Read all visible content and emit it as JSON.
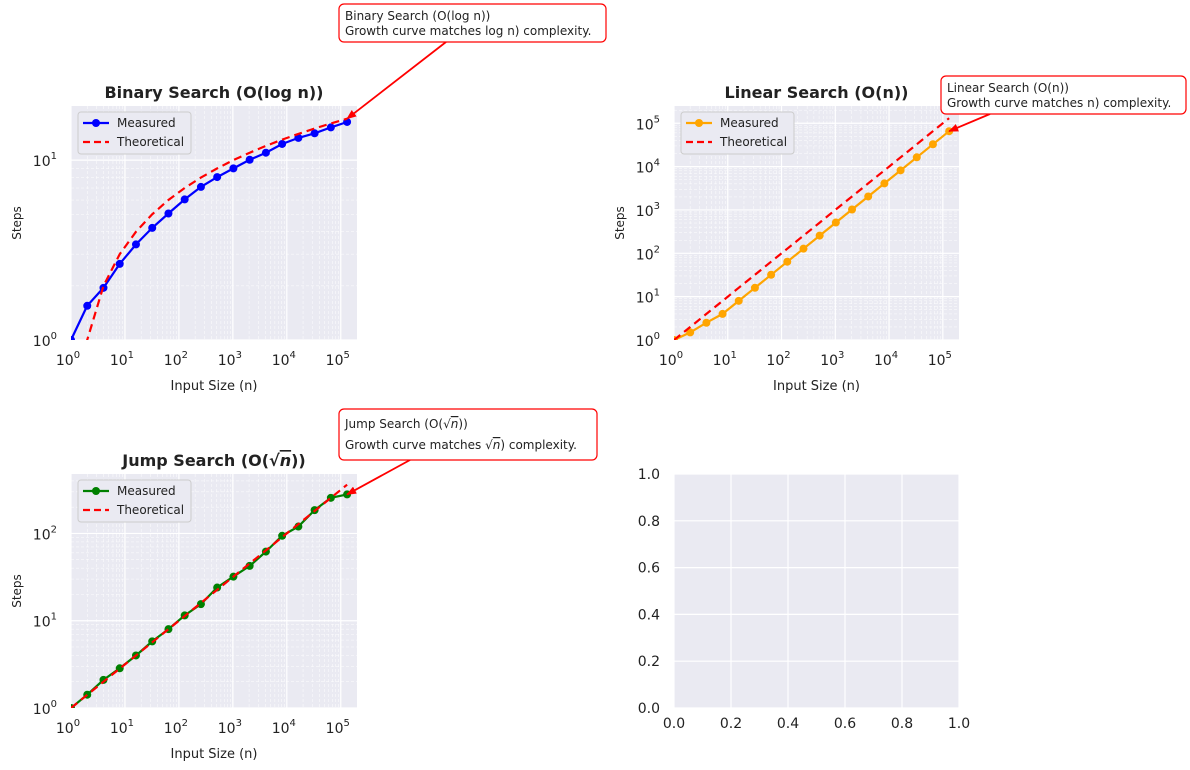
{
  "colors": {
    "theoretical": "#ff0000",
    "annotation": "#ff0000",
    "panel_bg": "#eaeaf2",
    "grid": "#ffffff"
  },
  "chart_data": [
    {
      "type": "line",
      "title": "Binary Search (O(log n))",
      "xlabel": "Input Size (n)",
      "ylabel": "Steps",
      "xscale": "log",
      "yscale": "log",
      "xlim": [
        1,
        200000
      ],
      "ylim": [
        1,
        20
      ],
      "xticks": [
        {
          "base": "10",
          "exp": "0"
        },
        {
          "base": "10",
          "exp": "1"
        },
        {
          "base": "10",
          "exp": "2"
        },
        {
          "base": "10",
          "exp": "3"
        },
        {
          "base": "10",
          "exp": "4"
        },
        {
          "base": "10",
          "exp": "5"
        }
      ],
      "yticks": [
        {
          "base": "10",
          "exp": "0"
        },
        {
          "base": "10",
          "exp": "1"
        }
      ],
      "legend_position": "upper-left",
      "grid": true,
      "series": [
        {
          "name": "Measured",
          "color": "#0000ff",
          "style": "solid-markers",
          "x": [
            1,
            2,
            4,
            8,
            16,
            32,
            64,
            128,
            256,
            512,
            1024,
            2048,
            4096,
            8192,
            16384,
            32768,
            65536,
            131072
          ],
          "y": [
            1,
            1.55,
            1.95,
            2.65,
            3.4,
            4.2,
            5.05,
            6.05,
            7.1,
            8.05,
            9,
            10.05,
            11,
            12.3,
            13.3,
            14.1,
            15.2,
            16.3
          ]
        },
        {
          "name": "Theoretical",
          "color": "#ff0000",
          "style": "dashed",
          "function": "log2",
          "x": [
            1.6,
            2,
            4,
            8,
            16,
            32,
            64,
            128,
            256,
            512,
            1024,
            2048,
            4096,
            8192,
            16384,
            32768,
            65536,
            131072
          ],
          "y": [
            0.68,
            1,
            2,
            3,
            4,
            5,
            6,
            7,
            8,
            9,
            10,
            11,
            12,
            13,
            14,
            15,
            16,
            17
          ]
        }
      ],
      "annotation": {
        "line1": "Binary Search (O(log n))",
        "line2": "Growth curve matches log n) complexity.",
        "target": [
          131072,
          17
        ]
      }
    },
    {
      "type": "line",
      "title": "Linear Search (O(n))",
      "xlabel": "Input Size (n)",
      "ylabel": "Steps",
      "xscale": "log",
      "yscale": "log",
      "xlim": [
        1,
        200000
      ],
      "ylim": [
        1,
        250000
      ],
      "xticks": [
        {
          "base": "10",
          "exp": "0"
        },
        {
          "base": "10",
          "exp": "1"
        },
        {
          "base": "10",
          "exp": "2"
        },
        {
          "base": "10",
          "exp": "3"
        },
        {
          "base": "10",
          "exp": "4"
        },
        {
          "base": "10",
          "exp": "5"
        }
      ],
      "yticks": [
        {
          "base": "10",
          "exp": "0"
        },
        {
          "base": "10",
          "exp": "1"
        },
        {
          "base": "10",
          "exp": "2"
        },
        {
          "base": "10",
          "exp": "3"
        },
        {
          "base": "10",
          "exp": "4"
        },
        {
          "base": "10",
          "exp": "5"
        }
      ],
      "legend_position": "upper-left",
      "grid": true,
      "series": [
        {
          "name": "Measured",
          "color": "#ffa500",
          "style": "solid-markers",
          "x": [
            1,
            2,
            4,
            8,
            16,
            32,
            64,
            128,
            256,
            512,
            1024,
            2048,
            4096,
            8192,
            16384,
            32768,
            65536,
            131072
          ],
          "y": [
            1,
            1.5,
            2.5,
            4,
            8,
            16,
            32,
            64,
            128,
            256,
            512,
            1024,
            2048,
            4096,
            8192,
            16384,
            32768,
            65536
          ]
        },
        {
          "name": "Theoretical",
          "color": "#ff0000",
          "style": "dashed",
          "function": "n",
          "x": [
            1,
            2,
            4,
            8,
            16,
            32,
            64,
            128,
            256,
            512,
            1024,
            2048,
            4096,
            8192,
            16384,
            32768,
            65536,
            131072
          ],
          "y": [
            1,
            2,
            4,
            8,
            16,
            32,
            64,
            128,
            256,
            512,
            1024,
            2048,
            4096,
            8192,
            16384,
            32768,
            65536,
            131072
          ]
        }
      ],
      "annotation": {
        "line1": "Linear Search (O(n))",
        "line2": "Growth curve matches n) complexity.",
        "target": [
          131072,
          65536
        ]
      }
    },
    {
      "type": "line",
      "title_parts": [
        "Jump Search (O(",
        "√",
        "n",
        "))"
      ],
      "xlabel": "Input Size (n)",
      "ylabel": "Steps",
      "xscale": "log",
      "yscale": "log",
      "xlim": [
        1,
        200000
      ],
      "ylim": [
        1,
        480
      ],
      "xticks": [
        {
          "base": "10",
          "exp": "0"
        },
        {
          "base": "10",
          "exp": "1"
        },
        {
          "base": "10",
          "exp": "2"
        },
        {
          "base": "10",
          "exp": "3"
        },
        {
          "base": "10",
          "exp": "4"
        },
        {
          "base": "10",
          "exp": "5"
        }
      ],
      "yticks": [
        {
          "base": "10",
          "exp": "0"
        },
        {
          "base": "10",
          "exp": "1"
        },
        {
          "base": "10",
          "exp": "2"
        }
      ],
      "legend_position": "upper-left",
      "grid": true,
      "series": [
        {
          "name": "Measured",
          "color": "#008000",
          "style": "solid-markers",
          "x": [
            1,
            2,
            4,
            8,
            16,
            32,
            64,
            128,
            256,
            512,
            1024,
            2048,
            4096,
            8192,
            16384,
            32768,
            65536,
            131072
          ],
          "y": [
            1,
            1.42,
            2.1,
            2.85,
            4,
            5.8,
            8,
            11.5,
            15.5,
            24,
            32,
            42.5,
            62,
            94,
            120,
            185,
            256,
            280
          ]
        },
        {
          "name": "Theoretical",
          "color": "#ff0000",
          "style": "dashed",
          "function": "sqrt",
          "x": [
            1,
            2,
            4,
            8,
            16,
            32,
            64,
            128,
            256,
            512,
            1024,
            2048,
            4096,
            8192,
            16384,
            32768,
            65536,
            131072
          ],
          "y": [
            1,
            1.414,
            2,
            2.83,
            4,
            5.66,
            8,
            11.3,
            16,
            22.6,
            32,
            45.3,
            64,
            90.5,
            128,
            181,
            256,
            362
          ]
        }
      ],
      "annotation": {
        "line1_parts": [
          "Jump Search (O(",
          "√",
          "n",
          "))"
        ],
        "line2_parts": [
          "Growth curve matches ",
          "√",
          "n",
          ") complexity."
        ],
        "target": [
          131072,
          280
        ]
      }
    },
    {
      "type": "empty",
      "xlim": [
        0,
        1
      ],
      "ylim": [
        0,
        1
      ],
      "xticks": [
        "0.0",
        "0.2",
        "0.4",
        "0.6",
        "0.8",
        "1.0"
      ],
      "yticks": [
        "0.0",
        "0.2",
        "0.4",
        "0.6",
        "0.8",
        "1.0"
      ],
      "grid": true
    }
  ]
}
